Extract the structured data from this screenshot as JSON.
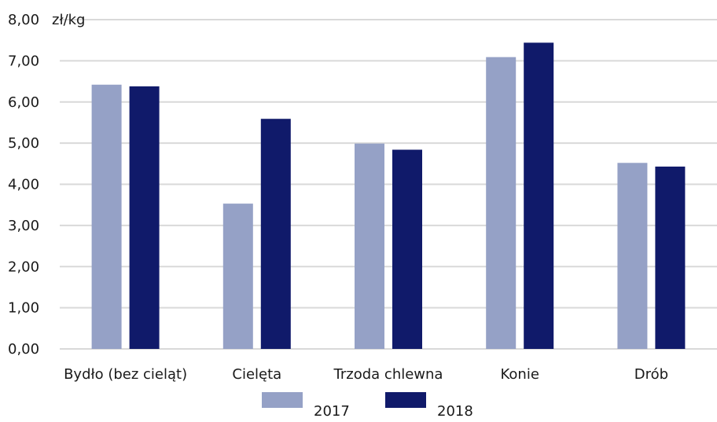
{
  "chart_data": {
    "type": "bar",
    "unit_label": "zł/kg",
    "categories": [
      "Bydło (bez cieląt)",
      "Cielęta",
      "Trzoda chlewna",
      "Konie",
      "Drób"
    ],
    "series": [
      {
        "name": "2017",
        "color": "#95a1c6",
        "values": [
          6.42,
          3.53,
          4.99,
          7.09,
          4.52
        ]
      },
      {
        "name": "2018",
        "color": "#101a6a",
        "values": [
          6.38,
          5.59,
          4.84,
          7.44,
          4.43
        ]
      }
    ],
    "ylim": [
      0,
      8
    ],
    "yticks": [
      "0,00",
      "1,00",
      "2,00",
      "3,00",
      "4,00",
      "5,00",
      "6,00",
      "7,00",
      "8,00"
    ],
    "grid": true,
    "legend_position": "bottom",
    "gridline_color": "#d9d9d9"
  }
}
